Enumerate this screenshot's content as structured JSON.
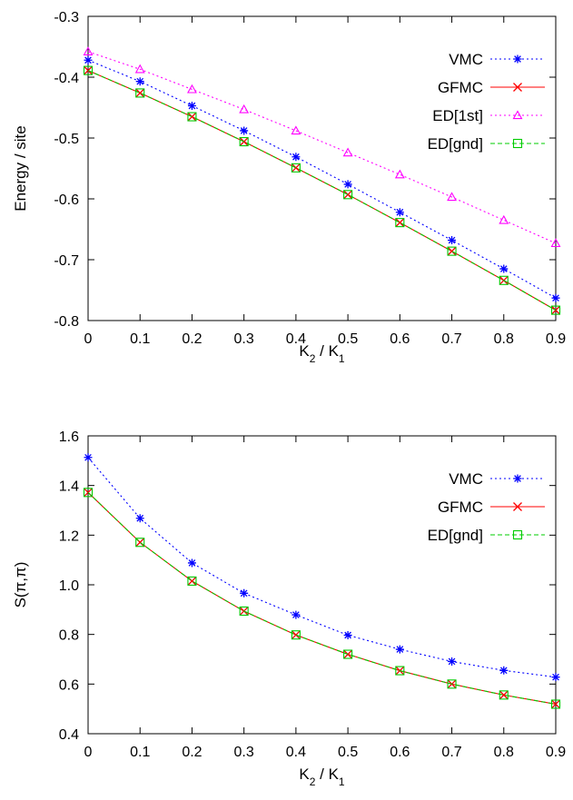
{
  "chart_data": [
    {
      "type": "line",
      "ylabel": "Energy / site",
      "xlabel": {
        "main": "K",
        "sub1": "2",
        "mid": " / K",
        "sub2": "1"
      },
      "xlim": [
        0,
        0.9
      ],
      "ylim": [
        -0.8,
        -0.3
      ],
      "xticks": [
        "0",
        "0.1",
        "0.2",
        "0.3",
        "0.4",
        "0.5",
        "0.6",
        "0.7",
        "0.8",
        "0.9"
      ],
      "yticks": [
        "-0.8",
        "-0.7",
        "-0.6",
        "-0.5",
        "-0.4",
        "-0.3"
      ],
      "x": [
        0,
        0.1,
        0.2,
        0.3,
        0.4,
        0.5,
        0.6,
        0.7,
        0.8,
        0.9
      ],
      "legend_position": "top-right",
      "series": [
        {
          "name": "VMC",
          "color": "#0000ff",
          "marker": "star",
          "dash": "dotted",
          "values": [
            -0.372,
            -0.407,
            -0.447,
            -0.488,
            -0.531,
            -0.576,
            -0.622,
            -0.668,
            -0.715,
            -0.763
          ]
        },
        {
          "name": "GFMC",
          "color": "#ff0000",
          "marker": "x",
          "dash": "solid",
          "values": [
            -0.389,
            -0.426,
            -0.465,
            -0.506,
            -0.549,
            -0.593,
            -0.639,
            -0.686,
            -0.734,
            -0.783
          ]
        },
        {
          "name": "ED[1st]",
          "color": "#ff00ff",
          "marker": "triangle",
          "dash": "dotted",
          "values": [
            -0.358,
            -0.387,
            -0.42,
            -0.453,
            -0.488,
            -0.524,
            -0.56,
            -0.597,
            -0.635,
            -0.673
          ]
        },
        {
          "name": "ED[gnd]",
          "color": "#00cc00",
          "marker": "square",
          "dash": "dashed",
          "values": [
            -0.389,
            -0.426,
            -0.465,
            -0.506,
            -0.549,
            -0.593,
            -0.639,
            -0.686,
            -0.734,
            -0.783
          ]
        }
      ]
    },
    {
      "type": "line",
      "ylabel": "S(π,π)",
      "xlabel": {
        "main": "K",
        "sub1": "2",
        "mid": " / K",
        "sub2": "1"
      },
      "xlim": [
        0,
        0.9
      ],
      "ylim": [
        0.4,
        1.6
      ],
      "xticks": [
        "0",
        "0.1",
        "0.2",
        "0.3",
        "0.4",
        "0.5",
        "0.6",
        "0.7",
        "0.8",
        "0.9"
      ],
      "yticks": [
        "0.4",
        "0.6",
        "0.8",
        "1.0",
        "1.2",
        "1.4",
        "1.6"
      ],
      "x": [
        0,
        0.1,
        0.2,
        0.3,
        0.4,
        0.5,
        0.6,
        0.7,
        0.8,
        0.9
      ],
      "legend_position": "top-right",
      "series": [
        {
          "name": "VMC",
          "color": "#0000ff",
          "marker": "star",
          "dash": "dotted",
          "values": [
            1.513,
            1.268,
            1.088,
            0.966,
            0.879,
            0.797,
            0.74,
            0.691,
            0.655,
            0.628
          ]
        },
        {
          "name": "GFMC",
          "color": "#ff0000",
          "marker": "x",
          "dash": "solid",
          "values": [
            1.372,
            1.171,
            1.015,
            0.894,
            0.798,
            0.72,
            0.654,
            0.6,
            0.556,
            0.519
          ]
        },
        {
          "name": "ED[gnd]",
          "color": "#00cc00",
          "marker": "square",
          "dash": "dashed",
          "values": [
            1.372,
            1.171,
            1.015,
            0.894,
            0.798,
            0.72,
            0.654,
            0.6,
            0.556,
            0.519
          ]
        }
      ]
    }
  ]
}
